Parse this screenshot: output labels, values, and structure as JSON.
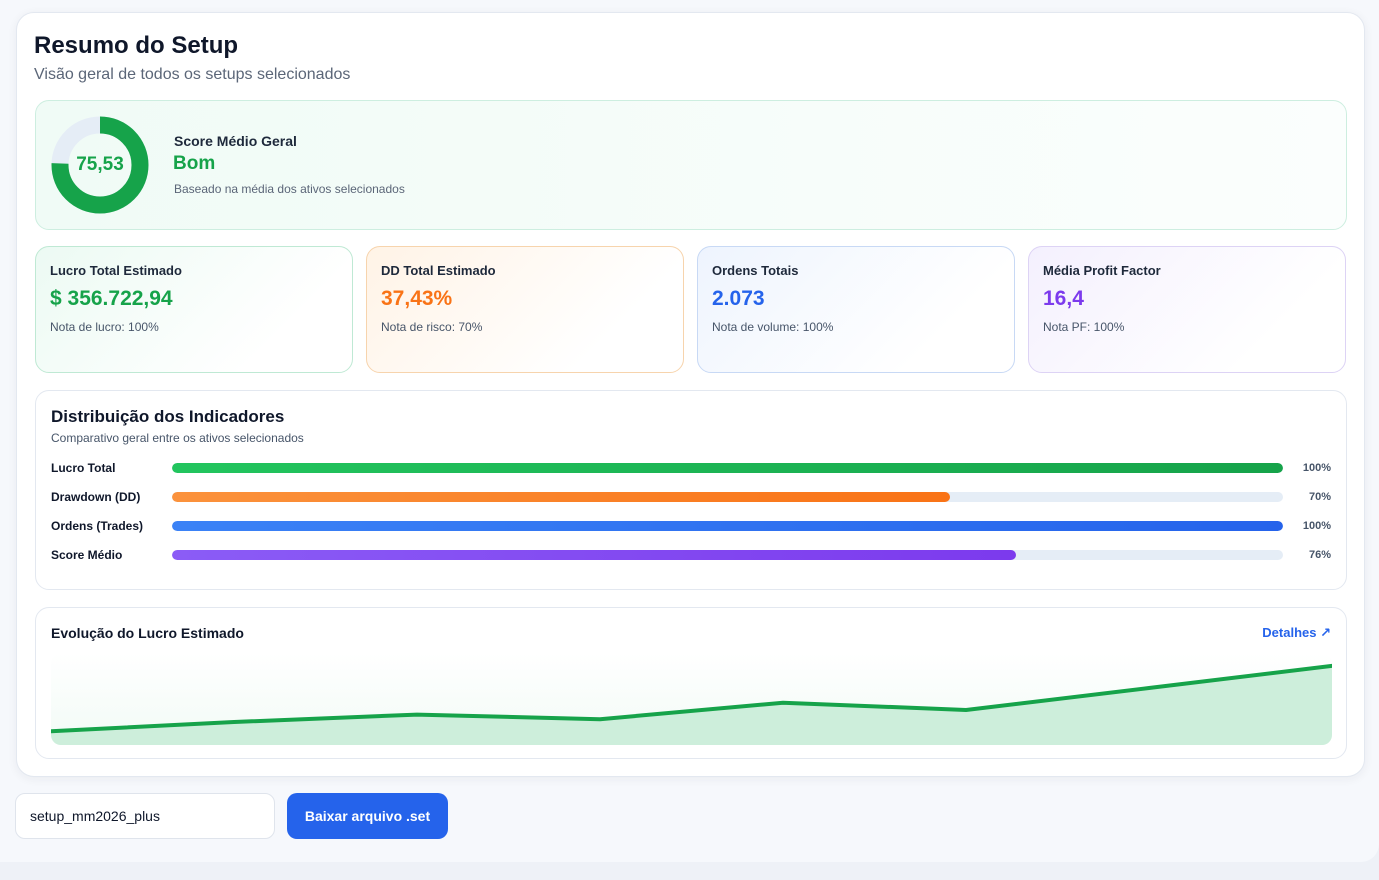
{
  "header": {
    "title": "Resumo do Setup",
    "subtitle": "Visão geral de todos os setups selecionados"
  },
  "score": {
    "value": "75,53",
    "value_numeric": 75.53,
    "label": "Score Médio Geral",
    "grade": "Bom",
    "note": "Baseado na média dos ativos selecionados",
    "color": "#16a34a"
  },
  "metrics": [
    {
      "label": "Lucro Total Estimado",
      "value": "$ 356.722,94",
      "note": "Nota de lucro: 100%",
      "color": "#16a34a"
    },
    {
      "label": "DD Total Estimado",
      "value": "37,43%",
      "note": "Nota de risco: 70%",
      "color": "#f97316"
    },
    {
      "label": "Ordens Totais",
      "value": "2.073",
      "note": "Nota de volume: 100%",
      "color": "#2563eb"
    },
    {
      "label": "Média Profit Factor",
      "value": "16,4",
      "note": "Nota PF: 100%",
      "color": "#7c3aed"
    }
  ],
  "distribution": {
    "title": "Distribuição dos Indicadores",
    "subtitle": "Comparativo geral entre os ativos selecionados",
    "bars": [
      {
        "label": "Lucro Total",
        "percent": 100,
        "percent_label": "100%",
        "color": "#16a34a"
      },
      {
        "label": "Drawdown (DD)",
        "percent": 70,
        "percent_label": "70%",
        "color": "#f97316"
      },
      {
        "label": "Ordens (Trades)",
        "percent": 100,
        "percent_label": "100%",
        "color": "#2563eb"
      },
      {
        "label": "Score Médio",
        "percent": 76,
        "percent_label": "76%",
        "color": "#7c3aed"
      }
    ]
  },
  "evolution": {
    "title": "Evolução do Lucro Estimado",
    "link_label": "Detalhes ↗",
    "chart_data": {
      "type": "area",
      "values": [
        0.15,
        0.25,
        0.33,
        0.28,
        0.46,
        0.38,
        0.62,
        0.86
      ],
      "ylim": [
        0,
        1
      ],
      "grid": false,
      "color": "#16a34a"
    }
  },
  "footer": {
    "filename_value": "setup_mm2026_plus",
    "download_label": "Baixar arquivo .set"
  }
}
